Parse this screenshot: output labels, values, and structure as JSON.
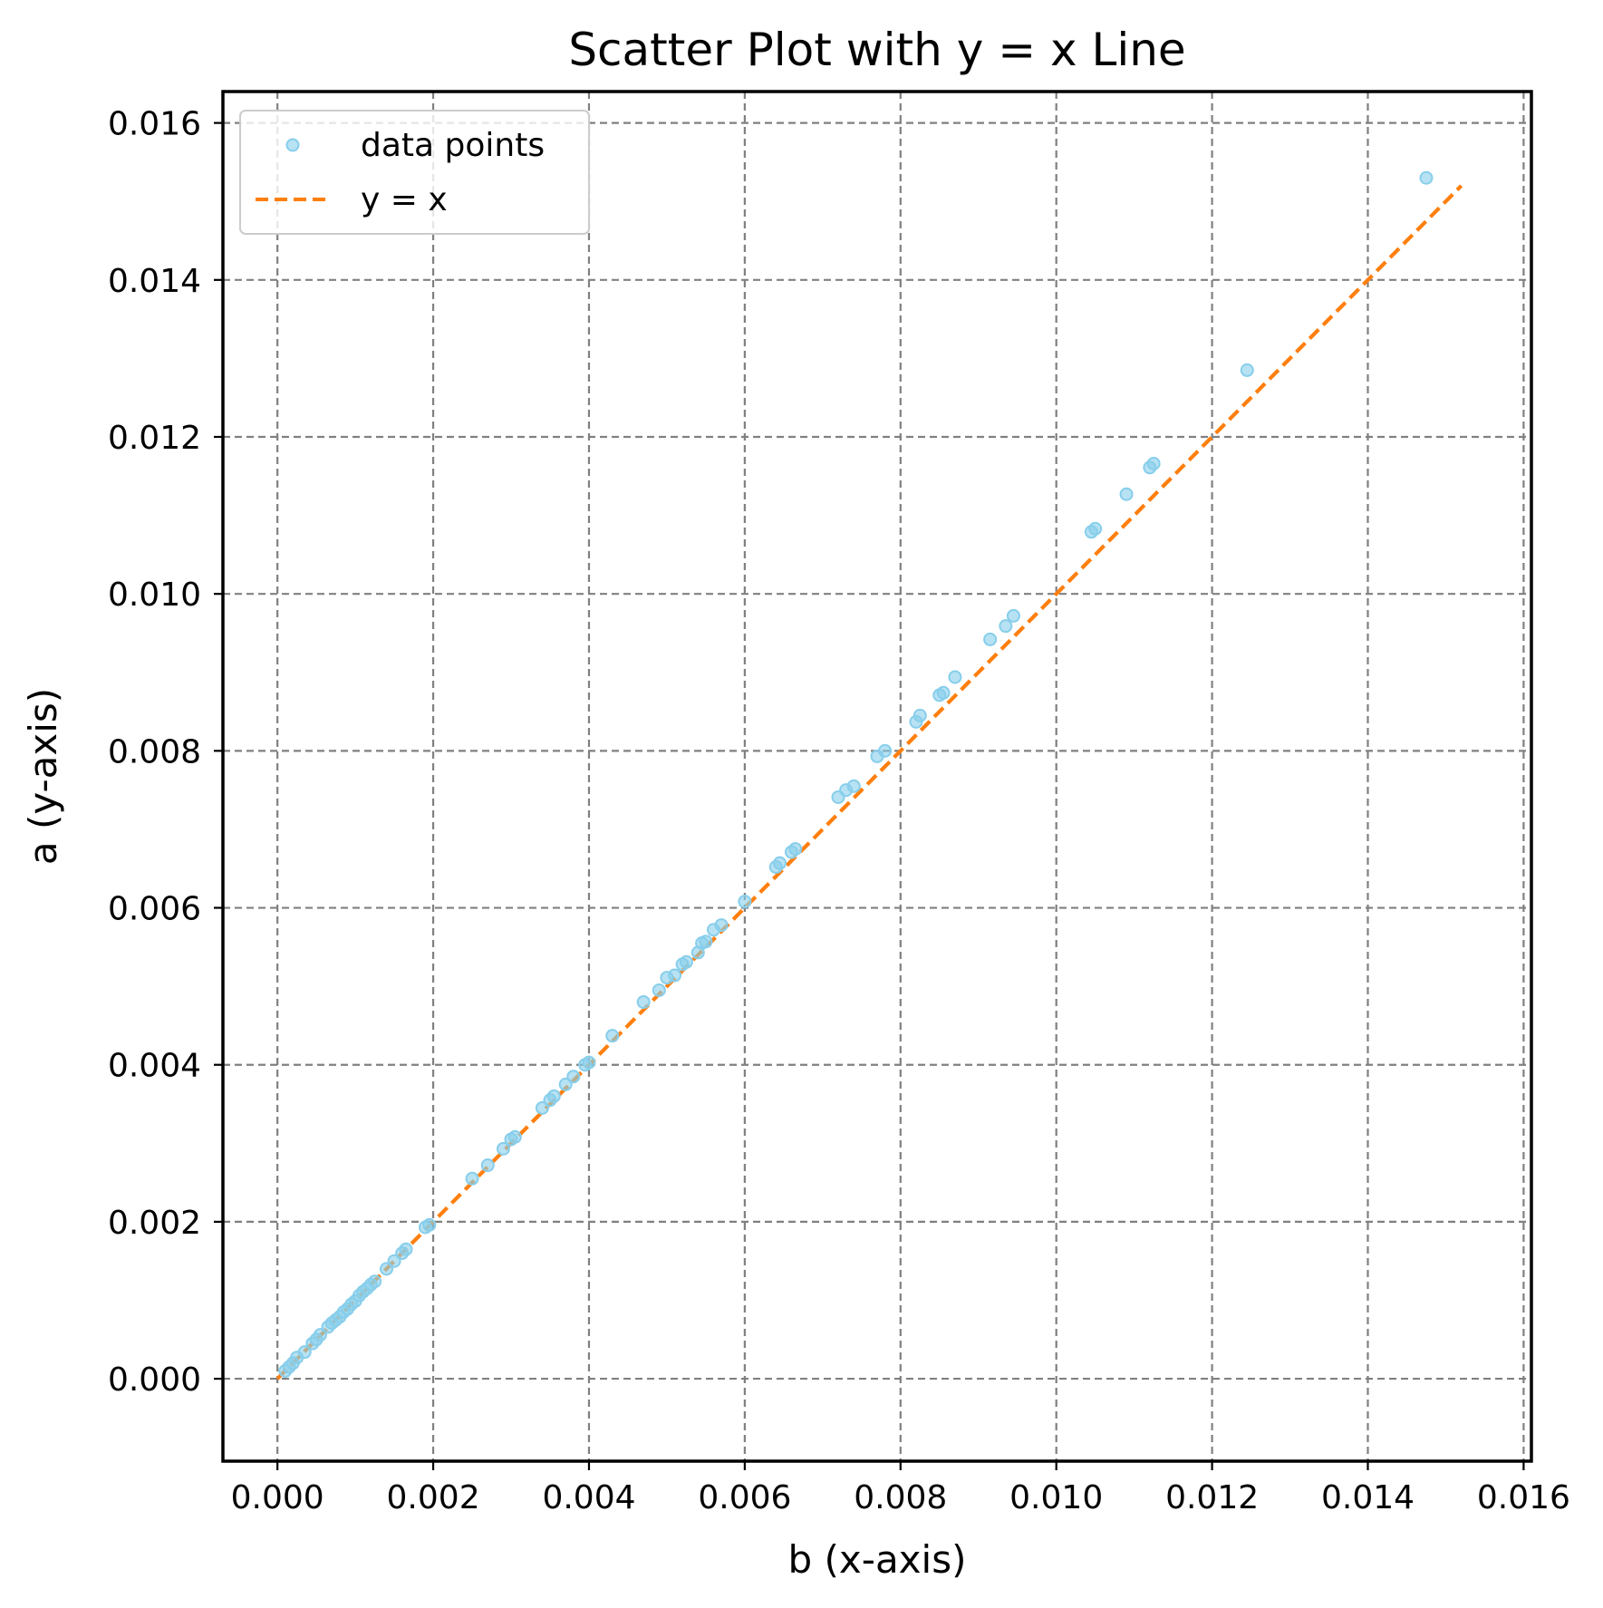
{
  "chart_data": {
    "type": "scatter",
    "title": "Scatter Plot with y = x Line",
    "xlabel": "b (x-axis)",
    "ylabel": "a (y-axis)",
    "xlim": [
      -0.0007,
      0.0161
    ],
    "ylim": [
      -0.00105,
      0.0164
    ],
    "xticks": [
      0.0,
      0.002,
      0.004,
      0.006,
      0.008,
      0.01,
      0.012,
      0.014,
      0.016
    ],
    "yticks": [
      0.0,
      0.002,
      0.004,
      0.006,
      0.008,
      0.01,
      0.012,
      0.014,
      0.016
    ],
    "xtick_labels": [
      "0.000",
      "0.002",
      "0.004",
      "0.006",
      "0.008",
      "0.010",
      "0.012",
      "0.014",
      "0.016"
    ],
    "ytick_labels": [
      "0.000",
      "0.002",
      "0.004",
      "0.006",
      "0.008",
      "0.010",
      "0.012",
      "0.014",
      "0.016"
    ],
    "grid": true,
    "legend_position": "top-left",
    "series": [
      {
        "name": "data points",
        "kind": "scatter",
        "color": "#87CEEB",
        "points": [
          [
            0.0001,
            0.0001
          ],
          [
            0.00015,
            0.00015
          ],
          [
            0.0002,
            0.0002
          ],
          [
            0.00025,
            0.00027
          ],
          [
            0.00035,
            0.00034
          ],
          [
            0.00045,
            0.00045
          ],
          [
            0.0005,
            0.0005
          ],
          [
            0.00055,
            0.00056
          ],
          [
            0.00065,
            0.00066
          ],
          [
            0.0007,
            0.00071
          ],
          [
            0.00075,
            0.00075
          ],
          [
            0.0008,
            0.00079
          ],
          [
            0.00085,
            0.00085
          ],
          [
            0.0009,
            0.00089
          ],
          [
            0.00095,
            0.00095
          ],
          [
            0.001,
            0.00099
          ],
          [
            0.00105,
            0.00106
          ],
          [
            0.0011,
            0.00111
          ],
          [
            0.00115,
            0.00115
          ],
          [
            0.0012,
            0.0012
          ],
          [
            0.00125,
            0.00124
          ],
          [
            0.0014,
            0.0014
          ],
          [
            0.0015,
            0.0015
          ],
          [
            0.0016,
            0.0016
          ],
          [
            0.00165,
            0.00165
          ],
          [
            0.0019,
            0.00193
          ],
          [
            0.00195,
            0.00196
          ],
          [
            0.0025,
            0.00255
          ],
          [
            0.0027,
            0.00272
          ],
          [
            0.0029,
            0.00293
          ],
          [
            0.003,
            0.00305
          ],
          [
            0.00305,
            0.00308
          ],
          [
            0.0034,
            0.00345
          ],
          [
            0.0035,
            0.00355
          ],
          [
            0.00355,
            0.0036
          ],
          [
            0.0037,
            0.00375
          ],
          [
            0.0038,
            0.00385
          ],
          [
            0.00395,
            0.004
          ],
          [
            0.004,
            0.00403
          ],
          [
            0.0043,
            0.00437
          ],
          [
            0.0047,
            0.0048
          ],
          [
            0.0049,
            0.00495
          ],
          [
            0.005,
            0.00511
          ],
          [
            0.0051,
            0.00514
          ],
          [
            0.0052,
            0.00528
          ],
          [
            0.00525,
            0.00531
          ],
          [
            0.0054,
            0.00543
          ],
          [
            0.00545,
            0.00555
          ],
          [
            0.0055,
            0.00557
          ],
          [
            0.0056,
            0.00572
          ],
          [
            0.0057,
            0.00578
          ],
          [
            0.006,
            0.00608
          ],
          [
            0.0064,
            0.00652
          ],
          [
            0.00645,
            0.00657
          ],
          [
            0.0066,
            0.00671
          ],
          [
            0.00665,
            0.00675
          ],
          [
            0.0072,
            0.00741
          ],
          [
            0.0073,
            0.0075
          ],
          [
            0.0074,
            0.00755
          ],
          [
            0.0077,
            0.00793
          ],
          [
            0.0078,
            0.008
          ],
          [
            0.0082,
            0.00837
          ],
          [
            0.00825,
            0.00845
          ],
          [
            0.0085,
            0.00871
          ],
          [
            0.00855,
            0.00874
          ],
          [
            0.0087,
            0.00894
          ],
          [
            0.00915,
            0.00942
          ],
          [
            0.00935,
            0.00959
          ],
          [
            0.00945,
            0.00972
          ],
          [
            0.01045,
            0.01079
          ],
          [
            0.0105,
            0.01083
          ],
          [
            0.0109,
            0.01127
          ],
          [
            0.0112,
            0.01161
          ],
          [
            0.01125,
            0.01166
          ],
          [
            0.01245,
            0.01285
          ],
          [
            0.01475,
            0.0153
          ]
        ]
      },
      {
        "name": "y = x",
        "kind": "line",
        "color": "#FF7F0E",
        "x": [
          0.0,
          0.0152
        ],
        "y": [
          0.0,
          0.0152
        ]
      }
    ]
  }
}
